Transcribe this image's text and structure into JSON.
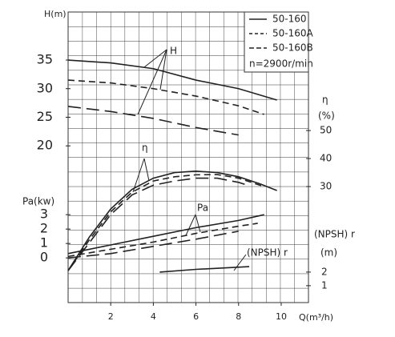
{
  "chart_data": {
    "type": "line",
    "x_label": "Q(m³/h)",
    "xlim": [
      0,
      11.28
    ],
    "xticks": [
      2,
      4,
      6,
      8,
      10
    ],
    "axes": {
      "H": {
        "label": "H(m)",
        "lim": [
          -7.4,
          43.4
        ],
        "ticks": [
          20,
          25,
          30,
          35
        ]
      },
      "Pa": {
        "label": "Pa(kw)",
        "lim": [
          -3.1,
          17.06
        ],
        "ticks": [
          0,
          1,
          2,
          3
        ]
      },
      "eta": {
        "label": "η",
        "unit": "(%)",
        "lim": [
          -11.4,
          92.3
        ],
        "ticks": [
          30,
          40,
          50
        ]
      },
      "npsh": {
        "label": "(NPSH) r",
        "unit": "(m)",
        "lim": [
          -0.24,
          21.1
        ],
        "ticks": [
          1,
          2
        ]
      }
    },
    "series": [
      {
        "name": "50-160",
        "color": "#222222",
        "dash": "solid",
        "H": {
          "x": [
            0,
            2,
            4,
            6,
            8,
            9.8
          ],
          "values": [
            35,
            34.5,
            33.5,
            31.5,
            30,
            28
          ]
        },
        "eta": {
          "x": [
            0,
            1,
            2,
            3,
            4,
            5,
            6,
            7,
            8,
            9,
            9.8
          ],
          "values": [
            0,
            12,
            22,
            29,
            33,
            35,
            35.5,
            35,
            33.5,
            31,
            28.6
          ]
        },
        "Pa": {
          "x": [
            0,
            2,
            4,
            6,
            8,
            9.2
          ],
          "values": [
            0.3,
            0.9,
            1.5,
            2.1,
            2.6,
            3.0
          ]
        }
      },
      {
        "name": "50-160A",
        "color": "#222222",
        "dash": "dashed",
        "H": {
          "x": [
            0,
            2,
            4,
            6,
            8,
            9.2
          ],
          "values": [
            31.5,
            31,
            30,
            28.7,
            27,
            25.5
          ]
        },
        "eta": {
          "x": [
            0,
            1,
            2,
            3,
            4,
            5,
            6,
            7,
            8,
            9.2
          ],
          "values": [
            0,
            11,
            21,
            28,
            32,
            33.5,
            34.2,
            34.3,
            33,
            30
          ]
        },
        "Pa": {
          "x": [
            0,
            2,
            4,
            6,
            8,
            8.9
          ],
          "values": [
            0.1,
            0.6,
            1.1,
            1.7,
            2.2,
            2.4
          ]
        }
      },
      {
        "name": "50-160B",
        "color": "#222222",
        "dash": "dashdot",
        "H": {
          "x": [
            0,
            2,
            4,
            6,
            8
          ],
          "values": [
            26.9,
            26,
            24.8,
            23.2,
            21.9
          ]
        },
        "eta": {
          "x": [
            0,
            1,
            2,
            3,
            4,
            5,
            6,
            7,
            8,
            8.5
          ],
          "values": [
            0,
            10,
            20,
            27,
            30.5,
            32,
            33,
            33,
            31.5,
            30.3
          ]
        },
        "Pa": {
          "x": [
            0,
            2,
            4,
            6,
            8
          ],
          "values": [
            0,
            0.3,
            0.8,
            1.3,
            1.85
          ]
        }
      }
    ],
    "npsh_curve": {
      "x": [
        4.3,
        6,
        8.5
      ],
      "values": [
        2.0,
        2.2,
        2.4
      ],
      "color": "#222222"
    },
    "legend_note": "n=2900r/min",
    "annotations": {
      "H": "H",
      "eta": "η",
      "Pa": "Pa",
      "npsh": "(NPSH) r"
    },
    "grid": true
  }
}
